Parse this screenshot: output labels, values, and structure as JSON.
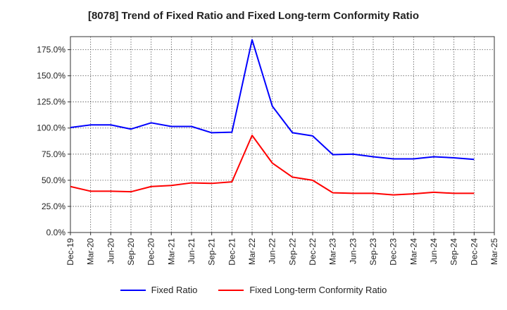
{
  "chart_data": {
    "type": "line",
    "title": "[8078]  Trend of Fixed Ratio and Fixed Long-term Conformity Ratio",
    "xlabel": "",
    "ylabel": "",
    "x": [
      "Dec-19",
      "Mar-20",
      "Jun-20",
      "Sep-20",
      "Dec-20",
      "Mar-21",
      "Jun-21",
      "Sep-21",
      "Dec-21",
      "Mar-22",
      "Jun-22",
      "Sep-22",
      "Dec-22",
      "Mar-23",
      "Jun-23",
      "Sep-23",
      "Dec-23",
      "Mar-24",
      "Jun-24",
      "Sep-24",
      "Dec-24",
      "Mar-25"
    ],
    "ylim": [
      0,
      187.5
    ],
    "yticks": [
      "0.0%",
      "25.0%",
      "50.0%",
      "75.0%",
      "100.0%",
      "125.0%",
      "150.0%",
      "175.0%"
    ],
    "ytick_values": [
      0,
      25,
      50,
      75,
      100,
      125,
      150,
      175
    ],
    "grid": true,
    "legend_position": "bottom",
    "series": [
      {
        "name": "Fixed Ratio",
        "color": "#0000ff",
        "values": [
          100.5,
          103,
          103,
          99,
          105,
          101.5,
          101.5,
          95.5,
          96,
          184.5,
          121,
          95.5,
          92.5,
          74.5,
          75,
          72.5,
          70.5,
          70.5,
          72.5,
          71.5,
          70,
          null
        ]
      },
      {
        "name": "Fixed Long-term Conformity Ratio",
        "color": "#ff0000",
        "values": [
          44,
          39.5,
          39.5,
          39,
          44,
          45,
          47.5,
          47,
          48.5,
          93,
          66.5,
          53,
          50,
          38,
          37.5,
          37.5,
          36,
          37,
          38.5,
          37.5,
          37.5,
          null
        ]
      }
    ]
  }
}
